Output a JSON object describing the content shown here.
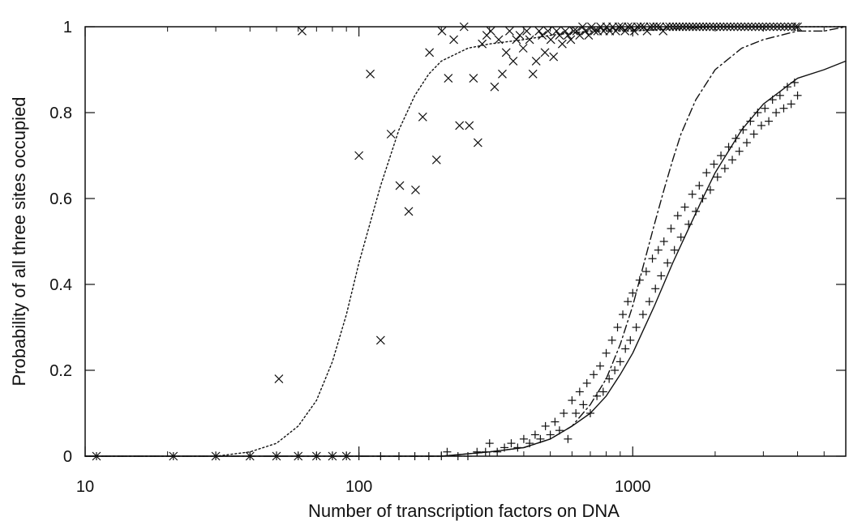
{
  "chart_data": {
    "type": "scatter",
    "title": "",
    "xlabel": "Number of transcription factors on DNA",
    "ylabel": "Probability of all three sites occupied",
    "xscale": "log",
    "xlim": [
      10,
      6000
    ],
    "ylim": [
      0,
      1
    ],
    "x_ticks": [
      10,
      100,
      1000
    ],
    "x_tick_labels": [
      "10",
      "100",
      "1000"
    ],
    "y_ticks": [
      0,
      0.2,
      0.4,
      0.6,
      0.8,
      1
    ],
    "y_tick_labels": [
      "0",
      "0.2",
      "0.4",
      "0.6",
      "0.8",
      "1"
    ],
    "grid": false,
    "legend": "none",
    "colors": {
      "ink": "#111111",
      "background": "#ffffff"
    },
    "series": [
      {
        "kind": "points",
        "marker": "x",
        "points": [
          [
            11,
            0
          ],
          [
            21,
            0
          ],
          [
            30,
            0
          ],
          [
            40,
            0
          ],
          [
            50,
            0
          ],
          [
            60,
            0
          ],
          [
            70,
            0
          ],
          [
            80,
            0
          ],
          [
            90,
            0
          ],
          [
            51,
            0.18
          ],
          [
            62,
            0.99
          ],
          [
            100,
            0.7
          ],
          [
            110,
            0.89
          ],
          [
            120,
            0.27
          ],
          [
            131,
            0.75
          ],
          [
            141,
            0.63
          ],
          [
            152,
            0.57
          ],
          [
            161,
            0.62
          ],
          [
            171,
            0.79
          ],
          [
            181,
            0.94
          ],
          [
            192,
            0.69
          ],
          [
            201,
            0.99
          ],
          [
            212,
            0.88
          ],
          [
            222,
            0.97
          ],
          [
            233,
            0.77
          ],
          [
            242,
            1.0
          ],
          [
            253,
            0.77
          ],
          [
            262,
            0.88
          ],
          [
            272,
            0.73
          ],
          [
            282,
            0.96
          ],
          [
            293,
            0.98
          ],
          [
            303,
            0.99
          ],
          [
            313,
            0.86
          ],
          [
            324,
            0.97
          ],
          [
            334,
            0.89
          ],
          [
            345,
            0.94
          ],
          [
            355,
            0.99
          ],
          [
            366,
            0.92
          ],
          [
            376,
            0.97
          ],
          [
            387,
            0.98
          ],
          [
            398,
            0.95
          ],
          [
            410,
            0.99
          ],
          [
            420,
            0.97
          ],
          [
            432,
            0.89
          ],
          [
            444,
            0.92
          ],
          [
            455,
            0.99
          ],
          [
            467,
            0.98
          ],
          [
            478,
            0.94
          ],
          [
            490,
            0.99
          ],
          [
            502,
            0.97
          ],
          [
            514,
            0.93
          ],
          [
            527,
            0.99
          ],
          [
            540,
            0.98
          ],
          [
            553,
            0.96
          ],
          [
            567,
            0.99
          ],
          [
            580,
            0.98
          ],
          [
            594,
            0.97
          ],
          [
            609,
            0.99
          ],
          [
            624,
            0.99
          ],
          [
            640,
            0.98
          ],
          [
            656,
            1.0
          ],
          [
            672,
            0.99
          ],
          [
            690,
            0.98
          ],
          [
            707,
            1.0
          ],
          [
            725,
            0.99
          ],
          [
            744,
            0.99
          ],
          [
            763,
            1.0
          ],
          [
            783,
            0.99
          ],
          [
            803,
            1.0
          ],
          [
            824,
            0.99
          ],
          [
            845,
            1.0
          ],
          [
            867,
            0.99
          ],
          [
            890,
            1.0
          ],
          [
            913,
            1.0
          ],
          [
            937,
            0.99
          ],
          [
            962,
            1.0
          ],
          [
            988,
            1.0
          ],
          [
            1014,
            0.99
          ],
          [
            1041,
            1.0
          ],
          [
            1069,
            1.0
          ],
          [
            1098,
            1.0
          ],
          [
            1128,
            0.99
          ],
          [
            1159,
            1.0
          ],
          [
            1190,
            1.0
          ],
          [
            1223,
            1.0
          ],
          [
            1256,
            1.0
          ],
          [
            1291,
            0.99
          ],
          [
            1327,
            1.0
          ],
          [
            1364,
            1.0
          ],
          [
            1402,
            1.0
          ],
          [
            1441,
            1.0
          ],
          [
            1482,
            1.0
          ],
          [
            1524,
            1.0
          ],
          [
            1567,
            1.0
          ],
          [
            1612,
            1.0
          ],
          [
            1658,
            1.0
          ],
          [
            1706,
            1.0
          ],
          [
            1755,
            1.0
          ],
          [
            1806,
            1.0
          ],
          [
            1858,
            1.0
          ],
          [
            1912,
            1.0
          ],
          [
            1968,
            1.0
          ],
          [
            2026,
            1.0
          ],
          [
            2086,
            1.0
          ],
          [
            2147,
            1.0
          ],
          [
            2211,
            1.0
          ],
          [
            2277,
            1.0
          ],
          [
            2345,
            1.0
          ],
          [
            2415,
            1.0
          ],
          [
            2488,
            1.0
          ],
          [
            2563,
            1.0
          ],
          [
            2641,
            1.0
          ],
          [
            2722,
            1.0
          ],
          [
            2805,
            1.0
          ],
          [
            2891,
            1.0
          ],
          [
            2980,
            1.0
          ],
          [
            3072,
            1.0
          ],
          [
            3168,
            1.0
          ],
          [
            3266,
            1.0
          ],
          [
            3368,
            1.0
          ],
          [
            3474,
            1.0
          ],
          [
            3583,
            1.0
          ],
          [
            3696,
            1.0
          ],
          [
            3813,
            1.0
          ],
          [
            3934,
            1.0
          ],
          [
            4000,
            1.0
          ]
        ]
      },
      {
        "kind": "points",
        "marker": "+",
        "points": [
          [
            11,
            0
          ],
          [
            21,
            0
          ],
          [
            30,
            0
          ],
          [
            40,
            0
          ],
          [
            50,
            0
          ],
          [
            60,
            0
          ],
          [
            70,
            0
          ],
          [
            80,
            0
          ],
          [
            90,
            0
          ],
          [
            100,
            0
          ],
          [
            120,
            0
          ],
          [
            140,
            0
          ],
          [
            160,
            0
          ],
          [
            180,
            0
          ],
          [
            200,
            0
          ],
          [
            210,
            0.01
          ],
          [
            230,
            0
          ],
          [
            250,
            0
          ],
          [
            270,
            0.01
          ],
          [
            290,
            0.01
          ],
          [
            300,
            0.03
          ],
          [
            320,
            0.01
          ],
          [
            340,
            0.02
          ],
          [
            360,
            0.03
          ],
          [
            380,
            0.02
          ],
          [
            400,
            0.04
          ],
          [
            420,
            0.03
          ],
          [
            440,
            0.05
          ],
          [
            460,
            0.04
          ],
          [
            480,
            0.07
          ],
          [
            500,
            0.05
          ],
          [
            520,
            0.08
          ],
          [
            540,
            0.06
          ],
          [
            560,
            0.1
          ],
          [
            580,
            0.04
          ],
          [
            600,
            0.13
          ],
          [
            620,
            0.1
          ],
          [
            640,
            0.15
          ],
          [
            660,
            0.12
          ],
          [
            680,
            0.17
          ],
          [
            700,
            0.1
          ],
          [
            720,
            0.19
          ],
          [
            740,
            0.14
          ],
          [
            760,
            0.21
          ],
          [
            780,
            0.15
          ],
          [
            800,
            0.24
          ],
          [
            820,
            0.18
          ],
          [
            840,
            0.27
          ],
          [
            860,
            0.2
          ],
          [
            880,
            0.3
          ],
          [
            900,
            0.22
          ],
          [
            920,
            0.33
          ],
          [
            940,
            0.25
          ],
          [
            960,
            0.36
          ],
          [
            980,
            0.27
          ],
          [
            1000,
            0.38
          ],
          [
            1030,
            0.3
          ],
          [
            1060,
            0.41
          ],
          [
            1090,
            0.33
          ],
          [
            1120,
            0.43
          ],
          [
            1150,
            0.36
          ],
          [
            1180,
            0.46
          ],
          [
            1210,
            0.39
          ],
          [
            1240,
            0.48
          ],
          [
            1270,
            0.42
          ],
          [
            1300,
            0.5
          ],
          [
            1340,
            0.45
          ],
          [
            1380,
            0.53
          ],
          [
            1420,
            0.48
          ],
          [
            1460,
            0.56
          ],
          [
            1500,
            0.51
          ],
          [
            1550,
            0.58
          ],
          [
            1600,
            0.54
          ],
          [
            1650,
            0.61
          ],
          [
            1700,
            0.57
          ],
          [
            1750,
            0.63
          ],
          [
            1800,
            0.6
          ],
          [
            1860,
            0.66
          ],
          [
            1920,
            0.62
          ],
          [
            1980,
            0.68
          ],
          [
            2040,
            0.65
          ],
          [
            2100,
            0.7
          ],
          [
            2170,
            0.67
          ],
          [
            2240,
            0.72
          ],
          [
            2310,
            0.69
          ],
          [
            2380,
            0.74
          ],
          [
            2450,
            0.71
          ],
          [
            2530,
            0.76
          ],
          [
            2610,
            0.73
          ],
          [
            2690,
            0.78
          ],
          [
            2770,
            0.75
          ],
          [
            2860,
            0.8
          ],
          [
            2950,
            0.77
          ],
          [
            3040,
            0.81
          ],
          [
            3140,
            0.78
          ],
          [
            3240,
            0.83
          ],
          [
            3340,
            0.8
          ],
          [
            3450,
            0.84
          ],
          [
            3560,
            0.81
          ],
          [
            3670,
            0.86
          ],
          [
            3790,
            0.82
          ],
          [
            3900,
            0.87
          ],
          [
            4000,
            0.84
          ]
        ]
      },
      {
        "kind": "curve",
        "style": "dotted",
        "x": [
          10,
          20,
          30,
          40,
          50,
          60,
          70,
          80,
          90,
          100,
          120,
          140,
          160,
          180,
          200,
          250,
          300,
          400,
          500,
          700,
          1000,
          2000,
          4000,
          6000
        ],
        "y": [
          0.0,
          0.0,
          0.0,
          0.01,
          0.03,
          0.07,
          0.13,
          0.22,
          0.33,
          0.45,
          0.63,
          0.76,
          0.84,
          0.89,
          0.92,
          0.95,
          0.96,
          0.97,
          0.98,
          0.99,
          0.99,
          1.0,
          1.0,
          1.0
        ]
      },
      {
        "kind": "curve",
        "style": "dash-dot",
        "x": [
          10,
          100,
          200,
          300,
          400,
          500,
          600,
          700,
          800,
          900,
          1000,
          1100,
          1200,
          1300,
          1400,
          1500,
          1700,
          2000,
          2500,
          3000,
          4000,
          5000,
          6000
        ],
        "y": [
          0.0,
          0.0,
          0.0,
          0.01,
          0.02,
          0.04,
          0.07,
          0.12,
          0.18,
          0.26,
          0.35,
          0.45,
          0.54,
          0.62,
          0.69,
          0.75,
          0.83,
          0.9,
          0.95,
          0.97,
          0.99,
          0.99,
          1.0
        ]
      },
      {
        "kind": "curve",
        "style": "solid",
        "x": [
          10,
          100,
          200,
          300,
          400,
          500,
          600,
          700,
          800,
          900,
          1000,
          1200,
          1400,
          1600,
          1800,
          2000,
          2500,
          3000,
          4000,
          5000,
          6000
        ],
        "y": [
          0.0,
          0.0,
          0.0,
          0.01,
          0.02,
          0.04,
          0.07,
          0.1,
          0.14,
          0.19,
          0.24,
          0.35,
          0.45,
          0.53,
          0.6,
          0.66,
          0.76,
          0.82,
          0.88,
          0.9,
          0.92
        ]
      }
    ]
  }
}
